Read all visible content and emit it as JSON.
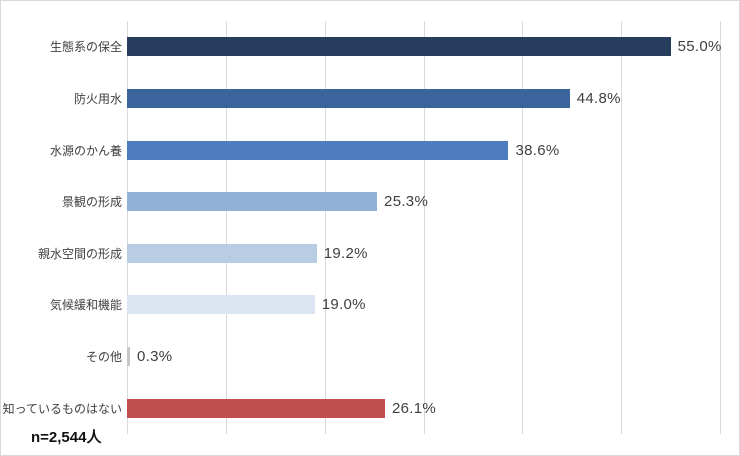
{
  "chart_data": {
    "type": "bar",
    "orientation": "horizontal",
    "title": "",
    "xlabel": "",
    "ylabel": "",
    "categories": [
      "生態系の保全",
      "防火用水",
      "水源のかん養",
      "景観の形成",
      "親水空間の形成",
      "気候緩和機能",
      "その他",
      "知っているものはない"
    ],
    "values": [
      55.0,
      44.8,
      38.6,
      25.3,
      19.2,
      19.0,
      0.3,
      26.1
    ],
    "value_labels": [
      "55.0%",
      "44.8%",
      "38.6%",
      "25.3%",
      "19.2%",
      "19.0%",
      "0.3%",
      "26.1%"
    ],
    "bar_colors": [
      "#263D5E",
      "#3A649B",
      "#4D7DBF",
      "#92B1D7",
      "#B8CCE4",
      "#DCE6F2",
      "#C6C6C6",
      "#C14F4F"
    ],
    "xlim": [
      0,
      60
    ],
    "grid": true,
    "gridline_ticks": [
      0,
      10,
      20,
      30,
      40,
      50,
      60
    ],
    "gridline_color": "#D9D9D9",
    "value_label_color": "#404040",
    "category_label_color": "#404040",
    "legend": "none"
  },
  "footer": {
    "sample_size_label": "n=2,544人"
  }
}
